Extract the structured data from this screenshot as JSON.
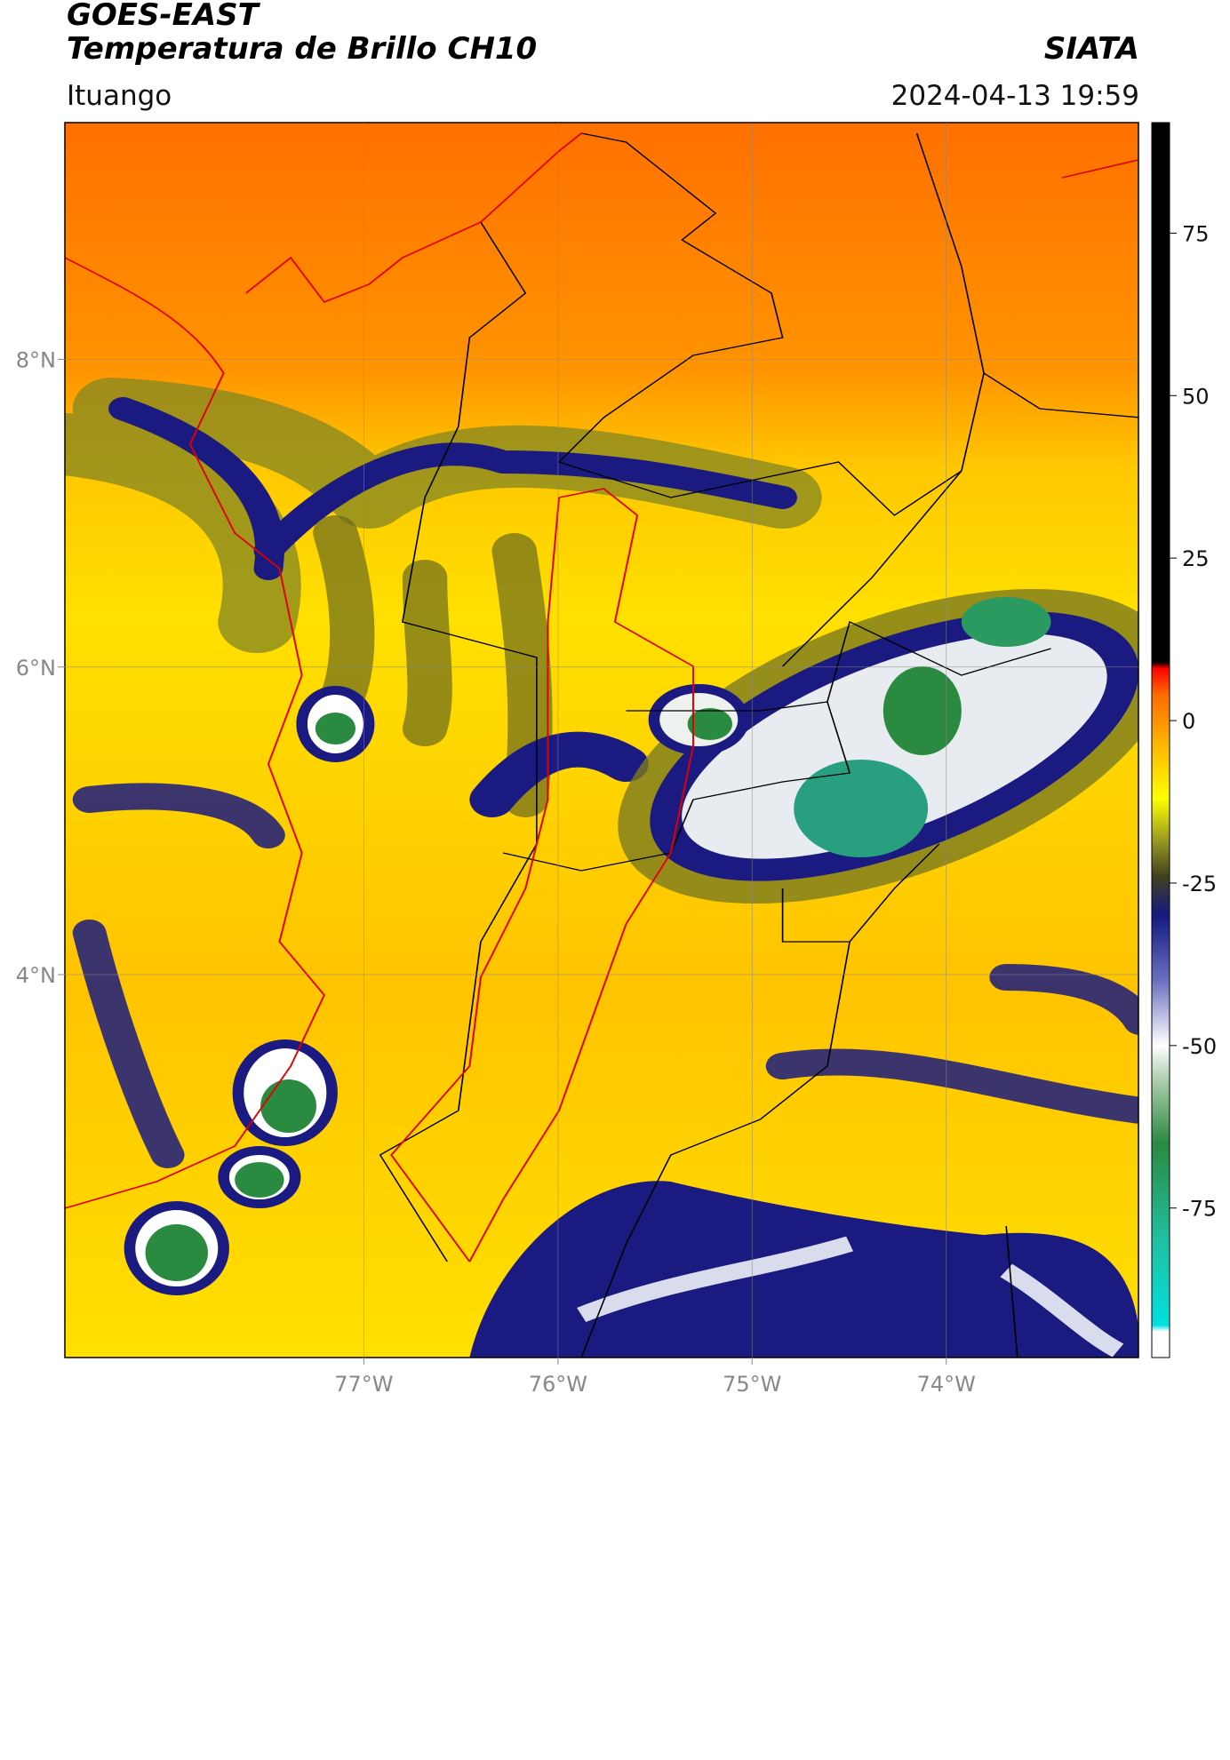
{
  "header": {
    "satellite": "GOES-EAST",
    "product": "Temperatura de Brillo CH10",
    "agency": "SIATA",
    "region": "Ituango",
    "datetime": "2024-04-13 19:59"
  },
  "map": {
    "xlim": [
      -78.54,
      -73.01
    ],
    "ylim": [
      1.51,
      9.54
    ],
    "xticks": [
      {
        "value": -77,
        "label": "77°W"
      },
      {
        "value": -76,
        "label": "76°W"
      },
      {
        "value": -75,
        "label": "75°W"
      },
      {
        "value": -74,
        "label": "74°W"
      }
    ],
    "yticks": [
      {
        "value": 4,
        "label": "4°N"
      },
      {
        "value": 6,
        "label": "6°N"
      },
      {
        "value": 8,
        "label": "8°N"
      }
    ],
    "grid": true
  },
  "colorbar": {
    "lim": [
      -98,
      92
    ],
    "ticks": [
      -75,
      -50,
      -25,
      0,
      25,
      50,
      75
    ],
    "colormap": [
      {
        "value": -98,
        "color": "#ffffff"
      },
      {
        "value": -94,
        "color": "#ffffff"
      },
      {
        "value": -93,
        "color": "#00e0e0"
      },
      {
        "value": -80,
        "color": "#20c0a0"
      },
      {
        "value": -65,
        "color": "#2a8a40"
      },
      {
        "value": -55,
        "color": "#b0d0b0"
      },
      {
        "value": -50,
        "color": "#ffffff"
      },
      {
        "value": -40,
        "color": "#6a70c0"
      },
      {
        "value": -30,
        "color": "#141a80"
      },
      {
        "value": -24,
        "color": "#404020"
      },
      {
        "value": -18,
        "color": "#a0a020"
      },
      {
        "value": -12,
        "color": "#ffff00"
      },
      {
        "value": -3,
        "color": "#ffb000"
      },
      {
        "value": 4,
        "color": "#ff6a00"
      },
      {
        "value": 8,
        "color": "#ff0000"
      },
      {
        "value": 9,
        "color": "#000000"
      },
      {
        "value": 92,
        "color": "#000000"
      }
    ]
  }
}
